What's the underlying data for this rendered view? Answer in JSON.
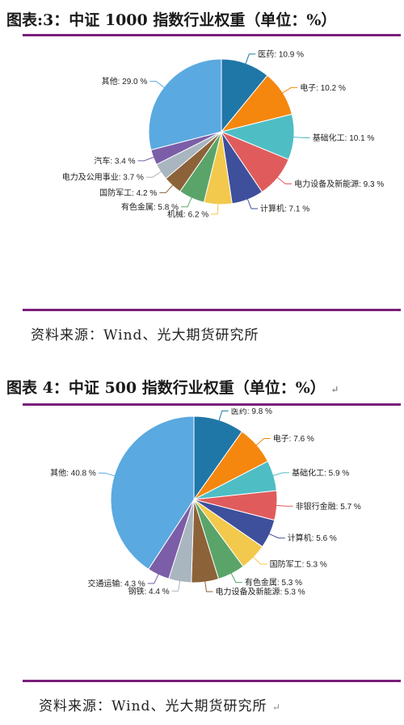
{
  "figures": [
    {
      "title": "图表:3：中证 1000 指数行业权重（单位：%）",
      "source": "资料来源：Wind、光大期货研究所",
      "end_mark": ""
    },
    {
      "title": "图表 4：中证 500 指数行业权重（单位：%）",
      "source": "资料来源：Wind、光大期货研究所",
      "end_mark": "↵"
    }
  ],
  "chart_data": [
    {
      "type": "pie",
      "title": "图表:3：中证 1000 指数行业权重（单位：%）",
      "slices": [
        {
          "label": "医药",
          "value": 10.9,
          "text": "医药: 10.9 %",
          "color": "#1f77a8"
        },
        {
          "label": "电子",
          "value": 10.2,
          "text": "电子: 10.2 %",
          "color": "#f5870f"
        },
        {
          "label": "基础化工",
          "value": 10.1,
          "text": "基础化工: 10.1 %",
          "color": "#4fbdc4"
        },
        {
          "label": "电力设备及新能源",
          "value": 9.3,
          "text": "电力设备及新能源: 9.3 %",
          "color": "#e05c5c"
        },
        {
          "label": "计算机",
          "value": 7.1,
          "text": "计算机: 7.1 %",
          "color": "#3e4f9c"
        },
        {
          "label": "机械",
          "value": 6.2,
          "text": "机械: 6.2 %",
          "color": "#f2c94c"
        },
        {
          "label": "有色金属",
          "value": 5.8,
          "text": "有色金属: 5.8 %",
          "color": "#5aa469"
        },
        {
          "label": "国防军工",
          "value": 4.2,
          "text": "国防军工: 4.2 %",
          "color": "#8c6239"
        },
        {
          "label": "电力及公用事业",
          "value": 3.7,
          "text": "电力及公用事业: 3.7 %",
          "color": "#a9b5bf"
        },
        {
          "label": "汽车",
          "value": 3.4,
          "text": "汽车: 3.4 %",
          "color": "#7b5ea7"
        },
        {
          "label": "其他",
          "value": 29.0,
          "text": "其他: 29.0 %",
          "color": "#5aa9e0"
        }
      ]
    },
    {
      "type": "pie",
      "title": "图表 4：中证 500 指数行业权重（单位：%）",
      "slices": [
        {
          "label": "医药",
          "value": 9.8,
          "text": "医药: 9.8 %",
          "color": "#1f77a8"
        },
        {
          "label": "电子",
          "value": 7.6,
          "text": "电子: 7.6 %",
          "color": "#f5870f"
        },
        {
          "label": "基础化工",
          "value": 5.9,
          "text": "基础化工: 5.9 %",
          "color": "#4fbdc4"
        },
        {
          "label": "非银行金融",
          "value": 5.7,
          "text": "非银行金融: 5.7 %",
          "color": "#e05c5c"
        },
        {
          "label": "计算机",
          "value": 5.6,
          "text": "计算机: 5.6 %",
          "color": "#3e4f9c"
        },
        {
          "label": "国防军工",
          "value": 5.3,
          "text": "国防军工: 5.3 %",
          "color": "#f2c94c"
        },
        {
          "label": "有色金属",
          "value": 5.3,
          "text": "有色金属: 5.3 %",
          "color": "#5aa469"
        },
        {
          "label": "电力设备及新能源",
          "value": 5.3,
          "text": "电力设备及新能源: 5.3 %",
          "color": "#8c6239"
        },
        {
          "label": "钢铁",
          "value": 4.4,
          "text": "钢铁: 4.4 %",
          "color": "#a9b5bf"
        },
        {
          "label": "交通运输",
          "value": 4.3,
          "text": "交通运输: 4.3 %",
          "color": "#7b5ea7"
        },
        {
          "label": "其他",
          "value": 40.8,
          "text": "其他: 40.8 %",
          "color": "#5aa9e0"
        }
      ]
    }
  ]
}
